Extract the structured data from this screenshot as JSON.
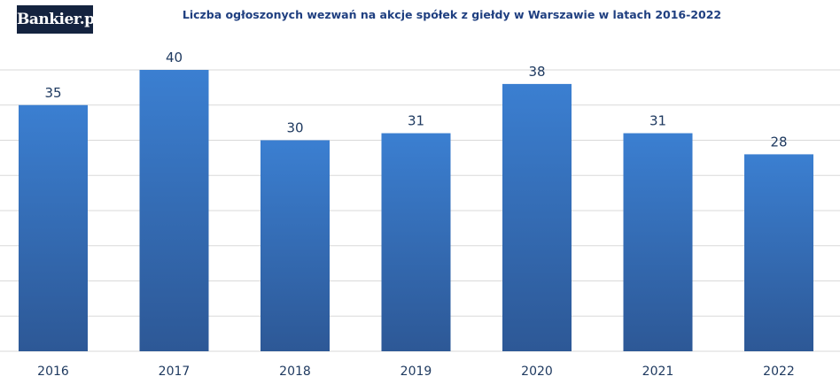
{
  "logo": {
    "text": "Bankier.pl"
  },
  "chart_data": {
    "type": "bar",
    "title": "Liczba ogłoszonych wezwań na akcje spółek z giełdy w Warszawie w latach 2016-2022",
    "categories": [
      "2016",
      "2017",
      "2018",
      "2019",
      "2020",
      "2021",
      "2022"
    ],
    "values": [
      35,
      40,
      30,
      31,
      38,
      31,
      28
    ],
    "ylim": [
      0,
      45
    ],
    "grid": true,
    "xlabel": "",
    "ylabel": "",
    "legend": "none",
    "colors": {
      "bar_top": "#3b7fd1",
      "bar_bottom": "#2d5896",
      "label": "#1f3a60",
      "title": "#1f3f80",
      "grid": "#d9d9d9"
    }
  }
}
